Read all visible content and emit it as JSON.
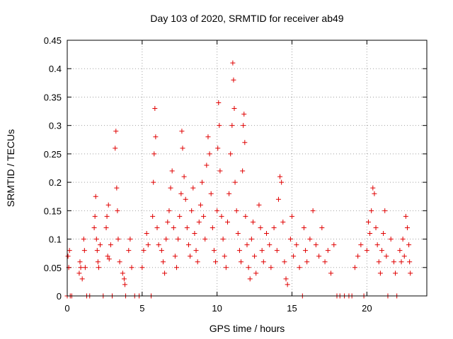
{
  "chart_data": {
    "type": "scatter",
    "title": "Day 103 of 2020, SRMTID for receiver ab49",
    "xlabel": "GPS time / hours",
    "ylabel": "SRMTID / TECUs",
    "xlim": [
      0,
      24
    ],
    "ylim": [
      0,
      0.45
    ],
    "xticks": [
      "0",
      "5",
      "10",
      "15",
      "20"
    ],
    "yticks": [
      "0",
      "0.05",
      "0.1",
      "0.15",
      "0.2",
      "0.25",
      "0.3",
      "0.35",
      "0.4",
      "0.45"
    ],
    "grid": true,
    "marker": "+",
    "color": "#e00000",
    "series": [
      {
        "name": "SRMTID",
        "points": [
          [
            0.0,
            0.0
          ],
          [
            0.05,
            0.07
          ],
          [
            0.1,
            0.05
          ],
          [
            0.15,
            0.08
          ],
          [
            0.2,
            0.0
          ],
          [
            0.3,
            0.0
          ],
          [
            0.8,
            0.04
          ],
          [
            0.85,
            0.06
          ],
          [
            0.9,
            0.05
          ],
          [
            1.0,
            0.03
          ],
          [
            1.1,
            0.1
          ],
          [
            1.15,
            0.08
          ],
          [
            1.2,
            0.05
          ],
          [
            1.3,
            0.0
          ],
          [
            1.5,
            0.0
          ],
          [
            1.8,
            0.12
          ],
          [
            1.85,
            0.14
          ],
          [
            1.9,
            0.175
          ],
          [
            1.95,
            0.1
          ],
          [
            2.0,
            0.08
          ],
          [
            2.05,
            0.06
          ],
          [
            2.1,
            0.05
          ],
          [
            2.2,
            0.09
          ],
          [
            2.4,
            0.0
          ],
          [
            2.6,
            0.12
          ],
          [
            2.65,
            0.14
          ],
          [
            2.7,
            0.07
          ],
          [
            2.75,
            0.16
          ],
          [
            2.8,
            0.065
          ],
          [
            2.9,
            0.09
          ],
          [
            3.0,
            0.0
          ],
          [
            3.2,
            0.26
          ],
          [
            3.25,
            0.29
          ],
          [
            3.3,
            0.19
          ],
          [
            3.35,
            0.15
          ],
          [
            3.4,
            0.1
          ],
          [
            3.5,
            0.06
          ],
          [
            3.7,
            0.04
          ],
          [
            3.8,
            0.03
          ],
          [
            3.85,
            0.02
          ],
          [
            3.9,
            0.0
          ],
          [
            4.1,
            0.08
          ],
          [
            4.2,
            0.1
          ],
          [
            4.3,
            0.05
          ],
          [
            4.5,
            0.0
          ],
          [
            4.8,
            0.0
          ],
          [
            5.0,
            0.05
          ],
          [
            5.1,
            0.08
          ],
          [
            5.3,
            0.11
          ],
          [
            5.4,
            0.09
          ],
          [
            5.6,
            0.0
          ],
          [
            5.7,
            0.14
          ],
          [
            5.75,
            0.2
          ],
          [
            5.8,
            0.25
          ],
          [
            5.85,
            0.33
          ],
          [
            5.9,
            0.28
          ],
          [
            6.0,
            0.12
          ],
          [
            6.1,
            0.09
          ],
          [
            6.3,
            0.08
          ],
          [
            6.4,
            0.06
          ],
          [
            6.5,
            0.04
          ],
          [
            6.6,
            0.1
          ],
          [
            6.7,
            0.13
          ],
          [
            6.8,
            0.15
          ],
          [
            6.9,
            0.19
          ],
          [
            7.0,
            0.22
          ],
          [
            7.1,
            0.12
          ],
          [
            7.2,
            0.07
          ],
          [
            7.3,
            0.05
          ],
          [
            7.4,
            0.1
          ],
          [
            7.5,
            0.14
          ],
          [
            7.6,
            0.18
          ],
          [
            7.65,
            0.29
          ],
          [
            7.7,
            0.26
          ],
          [
            7.8,
            0.21
          ],
          [
            7.9,
            0.17
          ],
          [
            8.0,
            0.12
          ],
          [
            8.1,
            0.09
          ],
          [
            8.2,
            0.07
          ],
          [
            8.3,
            0.15
          ],
          [
            8.4,
            0.19
          ],
          [
            8.5,
            0.11
          ],
          [
            8.6,
            0.08
          ],
          [
            8.7,
            0.06
          ],
          [
            8.8,
            0.13
          ],
          [
            8.9,
            0.16
          ],
          [
            9.0,
            0.2
          ],
          [
            9.1,
            0.14
          ],
          [
            9.2,
            0.1
          ],
          [
            9.3,
            0.23
          ],
          [
            9.4,
            0.28
          ],
          [
            9.5,
            0.25
          ],
          [
            9.6,
            0.18
          ],
          [
            9.7,
            0.12
          ],
          [
            9.8,
            0.08
          ],
          [
            9.9,
            0.06
          ],
          [
            10.0,
            0.15
          ],
          [
            10.05,
            0.26
          ],
          [
            10.1,
            0.34
          ],
          [
            10.15,
            0.3
          ],
          [
            10.2,
            0.22
          ],
          [
            10.3,
            0.14
          ],
          [
            10.4,
            0.1
          ],
          [
            10.5,
            0.07
          ],
          [
            10.6,
            0.05
          ],
          [
            10.7,
            0.13
          ],
          [
            10.8,
            0.18
          ],
          [
            10.9,
            0.25
          ],
          [
            11.0,
            0.3
          ],
          [
            11.05,
            0.41
          ],
          [
            11.1,
            0.38
          ],
          [
            11.15,
            0.33
          ],
          [
            11.2,
            0.2
          ],
          [
            11.3,
            0.15
          ],
          [
            11.4,
            0.11
          ],
          [
            11.5,
            0.08
          ],
          [
            11.6,
            0.06
          ],
          [
            11.7,
            0.22
          ],
          [
            11.75,
            0.3
          ],
          [
            11.8,
            0.32
          ],
          [
            11.85,
            0.27
          ],
          [
            11.9,
            0.14
          ],
          [
            12.0,
            0.09
          ],
          [
            12.1,
            0.05
          ],
          [
            12.2,
            0.03
          ],
          [
            12.3,
            0.1
          ],
          [
            12.4,
            0.13
          ],
          [
            12.5,
            0.07
          ],
          [
            12.6,
            0.04
          ],
          [
            12.8,
            0.16
          ],
          [
            12.9,
            0.12
          ],
          [
            13.0,
            0.08
          ],
          [
            13.1,
            0.06
          ],
          [
            13.3,
            0.11
          ],
          [
            13.5,
            0.09
          ],
          [
            13.6,
            0.05
          ],
          [
            13.8,
            0.12
          ],
          [
            14.0,
            0.08
          ],
          [
            14.1,
            0.17
          ],
          [
            14.2,
            0.21
          ],
          [
            14.3,
            0.2
          ],
          [
            14.4,
            0.13
          ],
          [
            14.5,
            0.06
          ],
          [
            14.6,
            0.03
          ],
          [
            14.7,
            0.02
          ],
          [
            14.9,
            0.1
          ],
          [
            15.0,
            0.14
          ],
          [
            15.1,
            0.07
          ],
          [
            15.3,
            0.09
          ],
          [
            15.5,
            0.05
          ],
          [
            15.7,
            0.0
          ],
          [
            15.8,
            0.12
          ],
          [
            15.9,
            0.08
          ],
          [
            16.0,
            0.06
          ],
          [
            16.2,
            0.1
          ],
          [
            16.4,
            0.15
          ],
          [
            16.6,
            0.09
          ],
          [
            16.8,
            0.07
          ],
          [
            17.0,
            0.12
          ],
          [
            17.2,
            0.06
          ],
          [
            17.4,
            0.08
          ],
          [
            17.6,
            0.04
          ],
          [
            17.8,
            0.09
          ],
          [
            18.0,
            0.0
          ],
          [
            18.2,
            0.0
          ],
          [
            18.5,
            0.0
          ],
          [
            18.8,
            0.0
          ],
          [
            19.0,
            0.0
          ],
          [
            19.2,
            0.05
          ],
          [
            19.4,
            0.07
          ],
          [
            19.6,
            0.09
          ],
          [
            19.8,
            0.0
          ],
          [
            20.0,
            0.08
          ],
          [
            20.1,
            0.13
          ],
          [
            20.2,
            0.11
          ],
          [
            20.3,
            0.15
          ],
          [
            20.4,
            0.19
          ],
          [
            20.5,
            0.18
          ],
          [
            20.6,
            0.12
          ],
          [
            20.7,
            0.09
          ],
          [
            20.8,
            0.06
          ],
          [
            20.9,
            0.04
          ],
          [
            21.0,
            0.08
          ],
          [
            21.1,
            0.11
          ],
          [
            21.2,
            0.15
          ],
          [
            21.3,
            0.07
          ],
          [
            21.4,
            0.0
          ],
          [
            21.6,
            0.1
          ],
          [
            21.8,
            0.06
          ],
          [
            21.9,
            0.04
          ],
          [
            22.0,
            0.0
          ],
          [
            22.2,
            0.08
          ],
          [
            22.3,
            0.06
          ],
          [
            22.4,
            0.1
          ],
          [
            22.5,
            0.07
          ],
          [
            22.6,
            0.14
          ],
          [
            22.7,
            0.12
          ],
          [
            22.8,
            0.09
          ],
          [
            22.85,
            0.06
          ],
          [
            22.9,
            0.04
          ]
        ]
      }
    ]
  }
}
